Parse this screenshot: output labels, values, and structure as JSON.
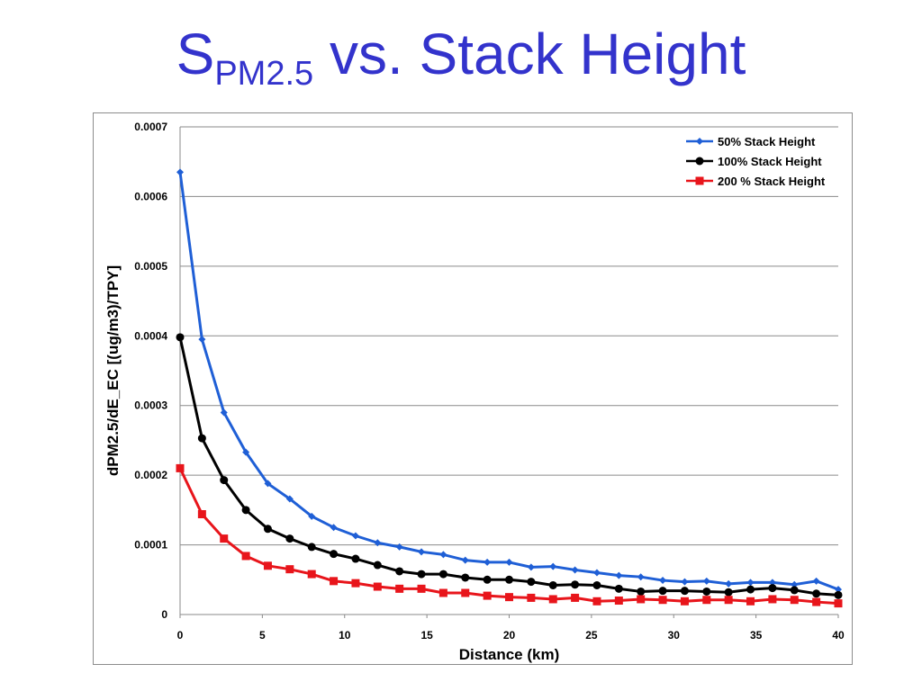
{
  "slide": {
    "title_main": "S",
    "title_sub": "PM2.5",
    "title_rest": " vs. Stack Height"
  },
  "chart_data": {
    "type": "line",
    "xlabel": "Distance (km)",
    "ylabel": "dPM2.5/dE_EC [(ug/m3)/TPY]",
    "xlim": [
      0,
      40
    ],
    "ylim": [
      0,
      0.0007
    ],
    "x_ticks": [
      "0",
      "5",
      "10",
      "15",
      "20",
      "25",
      "30",
      "35",
      "40"
    ],
    "y_ticks": [
      "0",
      "0.0001",
      "0.0002",
      "0.0003",
      "0.0004",
      "0.0005",
      "0.0006",
      "0.0007"
    ],
    "grid": "horizontal",
    "legend_position": "top-right",
    "x": [
      0,
      1.333,
      2.667,
      4,
      5.333,
      6.667,
      8,
      9.333,
      10.667,
      12,
      13.333,
      14.667,
      16,
      17.333,
      18.667,
      20,
      21.333,
      22.667,
      24,
      25.333,
      26.667,
      28,
      29.333,
      30.667,
      32,
      33.333,
      34.667,
      36,
      37.333,
      38.667,
      40
    ],
    "series": [
      {
        "name": "50% Stack Height",
        "color": "#1f5fd6",
        "marker": "diamond",
        "values": [
          0.000635,
          0.000395,
          0.00029,
          0.000233,
          0.000188,
          0.000166,
          0.000141,
          0.000125,
          0.000113,
          0.000103,
          9.7e-05,
          9e-05,
          8.6e-05,
          7.8e-05,
          7.5e-05,
          7.5e-05,
          6.8e-05,
          6.9e-05,
          6.4e-05,
          6e-05,
          5.6e-05,
          5.4e-05,
          4.9e-05,
          4.7e-05,
          4.8e-05,
          4.4e-05,
          4.6e-05,
          4.6e-05,
          4.3e-05,
          4.8e-05,
          3.6e-05
        ]
      },
      {
        "name": "100% Stack Height",
        "color": "#000000",
        "marker": "circle",
        "values": [
          0.000398,
          0.000253,
          0.000193,
          0.00015,
          0.000123,
          0.000109,
          9.7e-05,
          8.7e-05,
          8e-05,
          7.1e-05,
          6.2e-05,
          5.8e-05,
          5.8e-05,
          5.3e-05,
          5e-05,
          5e-05,
          4.7e-05,
          4.2e-05,
          4.3e-05,
          4.2e-05,
          3.7e-05,
          3.3e-05,
          3.4e-05,
          3.4e-05,
          3.3e-05,
          3.2e-05,
          3.6e-05,
          3.8e-05,
          3.5e-05,
          3e-05,
          2.8e-05
        ]
      },
      {
        "name": "200 % Stack Height",
        "color": "#e8151b",
        "marker": "square",
        "values": [
          0.00021,
          0.000144,
          0.000109,
          8.4e-05,
          7e-05,
          6.5e-05,
          5.8e-05,
          4.8e-05,
          4.5e-05,
          4e-05,
          3.7e-05,
          3.7e-05,
          3.1e-05,
          3.1e-05,
          2.7e-05,
          2.5e-05,
          2.4e-05,
          2.2e-05,
          2.4e-05,
          1.9e-05,
          2e-05,
          2.2e-05,
          2.1e-05,
          1.9e-05,
          2.1e-05,
          2.1e-05,
          1.9e-05,
          2.2e-05,
          2.1e-05,
          1.8e-05,
          1.6e-05
        ]
      }
    ]
  }
}
